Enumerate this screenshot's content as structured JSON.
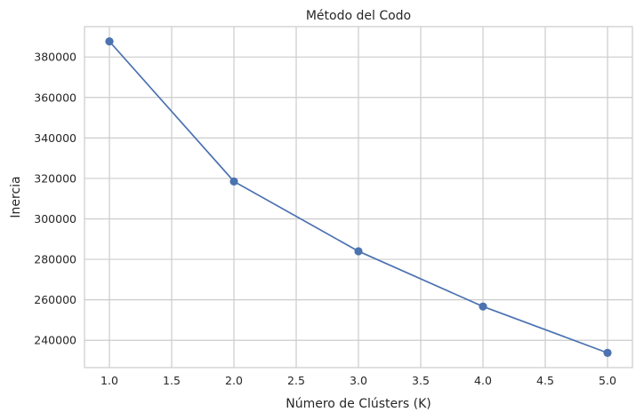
{
  "chart_data": {
    "type": "line",
    "title": "Método del Codo",
    "xlabel": "Número de Clústers (K)",
    "ylabel": "Inercia",
    "x": [
      1,
      2,
      3,
      4,
      5
    ],
    "series": [
      {
        "values": [
          387700,
          318500,
          284000,
          256700,
          233800
        ]
      }
    ],
    "xlim": [
      0.8,
      5.2
    ],
    "ylim": [
      226500,
      395000
    ],
    "xticks": [
      1.0,
      1.5,
      2.0,
      2.5,
      3.0,
      3.5,
      4.0,
      4.5,
      5.0
    ],
    "xtick_labels": [
      "1.0",
      "1.5",
      "2.0",
      "2.5",
      "3.0",
      "3.5",
      "4.0",
      "4.5",
      "5.0"
    ],
    "yticks": [
      240000,
      260000,
      280000,
      300000,
      320000,
      340000,
      360000,
      380000
    ],
    "ytick_labels": [
      "240000",
      "260000",
      "280000",
      "300000",
      "320000",
      "340000",
      "360000",
      "380000"
    ],
    "grid": true,
    "marker": "circle",
    "colors": {
      "line": "#4c72b0",
      "grid": "#cccccc",
      "axes_edge": "#cccccc",
      "background": "#ffffff"
    }
  }
}
